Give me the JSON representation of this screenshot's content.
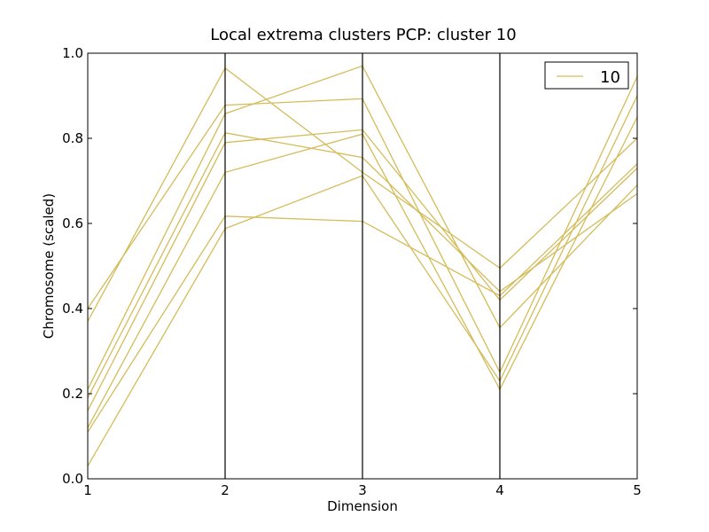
{
  "chart_data": {
    "type": "line",
    "title": "Local extrema clusters PCP: cluster 10",
    "xlabel": "Dimension",
    "ylabel": "Chromosome (scaled)",
    "x": [
      1,
      2,
      3,
      4,
      5
    ],
    "xticks": [
      "1",
      "2",
      "3",
      "4",
      "5"
    ],
    "yticks": [
      "0.0",
      "0.2",
      "0.4",
      "0.6",
      "0.8",
      "1.0"
    ],
    "ylim": [
      0,
      1
    ],
    "xlim": [
      1,
      5
    ],
    "grid": false,
    "axis_lines": "vertical lines at each dimension",
    "legend": {
      "position": "top-right",
      "entries": [
        "10"
      ]
    },
    "line_color": "#d4bc5a",
    "series": [
      {
        "values": [
          0.4,
          0.878,
          0.893,
          0.25,
          0.945
        ]
      },
      {
        "values": [
          0.37,
          0.965,
          0.72,
          0.495,
          0.8
        ]
      },
      {
        "values": [
          0.21,
          0.858,
          0.97,
          0.355,
          0.69
        ]
      },
      {
        "values": [
          0.19,
          0.813,
          0.755,
          0.44,
          0.67
        ]
      },
      {
        "values": [
          0.16,
          0.79,
          0.82,
          0.42,
          0.73
        ]
      },
      {
        "values": [
          0.12,
          0.72,
          0.81,
          0.21,
          0.85
        ]
      },
      {
        "values": [
          0.11,
          0.617,
          0.605,
          0.43,
          0.74
        ]
      },
      {
        "values": [
          0.03,
          0.588,
          0.712,
          0.23,
          0.9
        ]
      }
    ]
  }
}
